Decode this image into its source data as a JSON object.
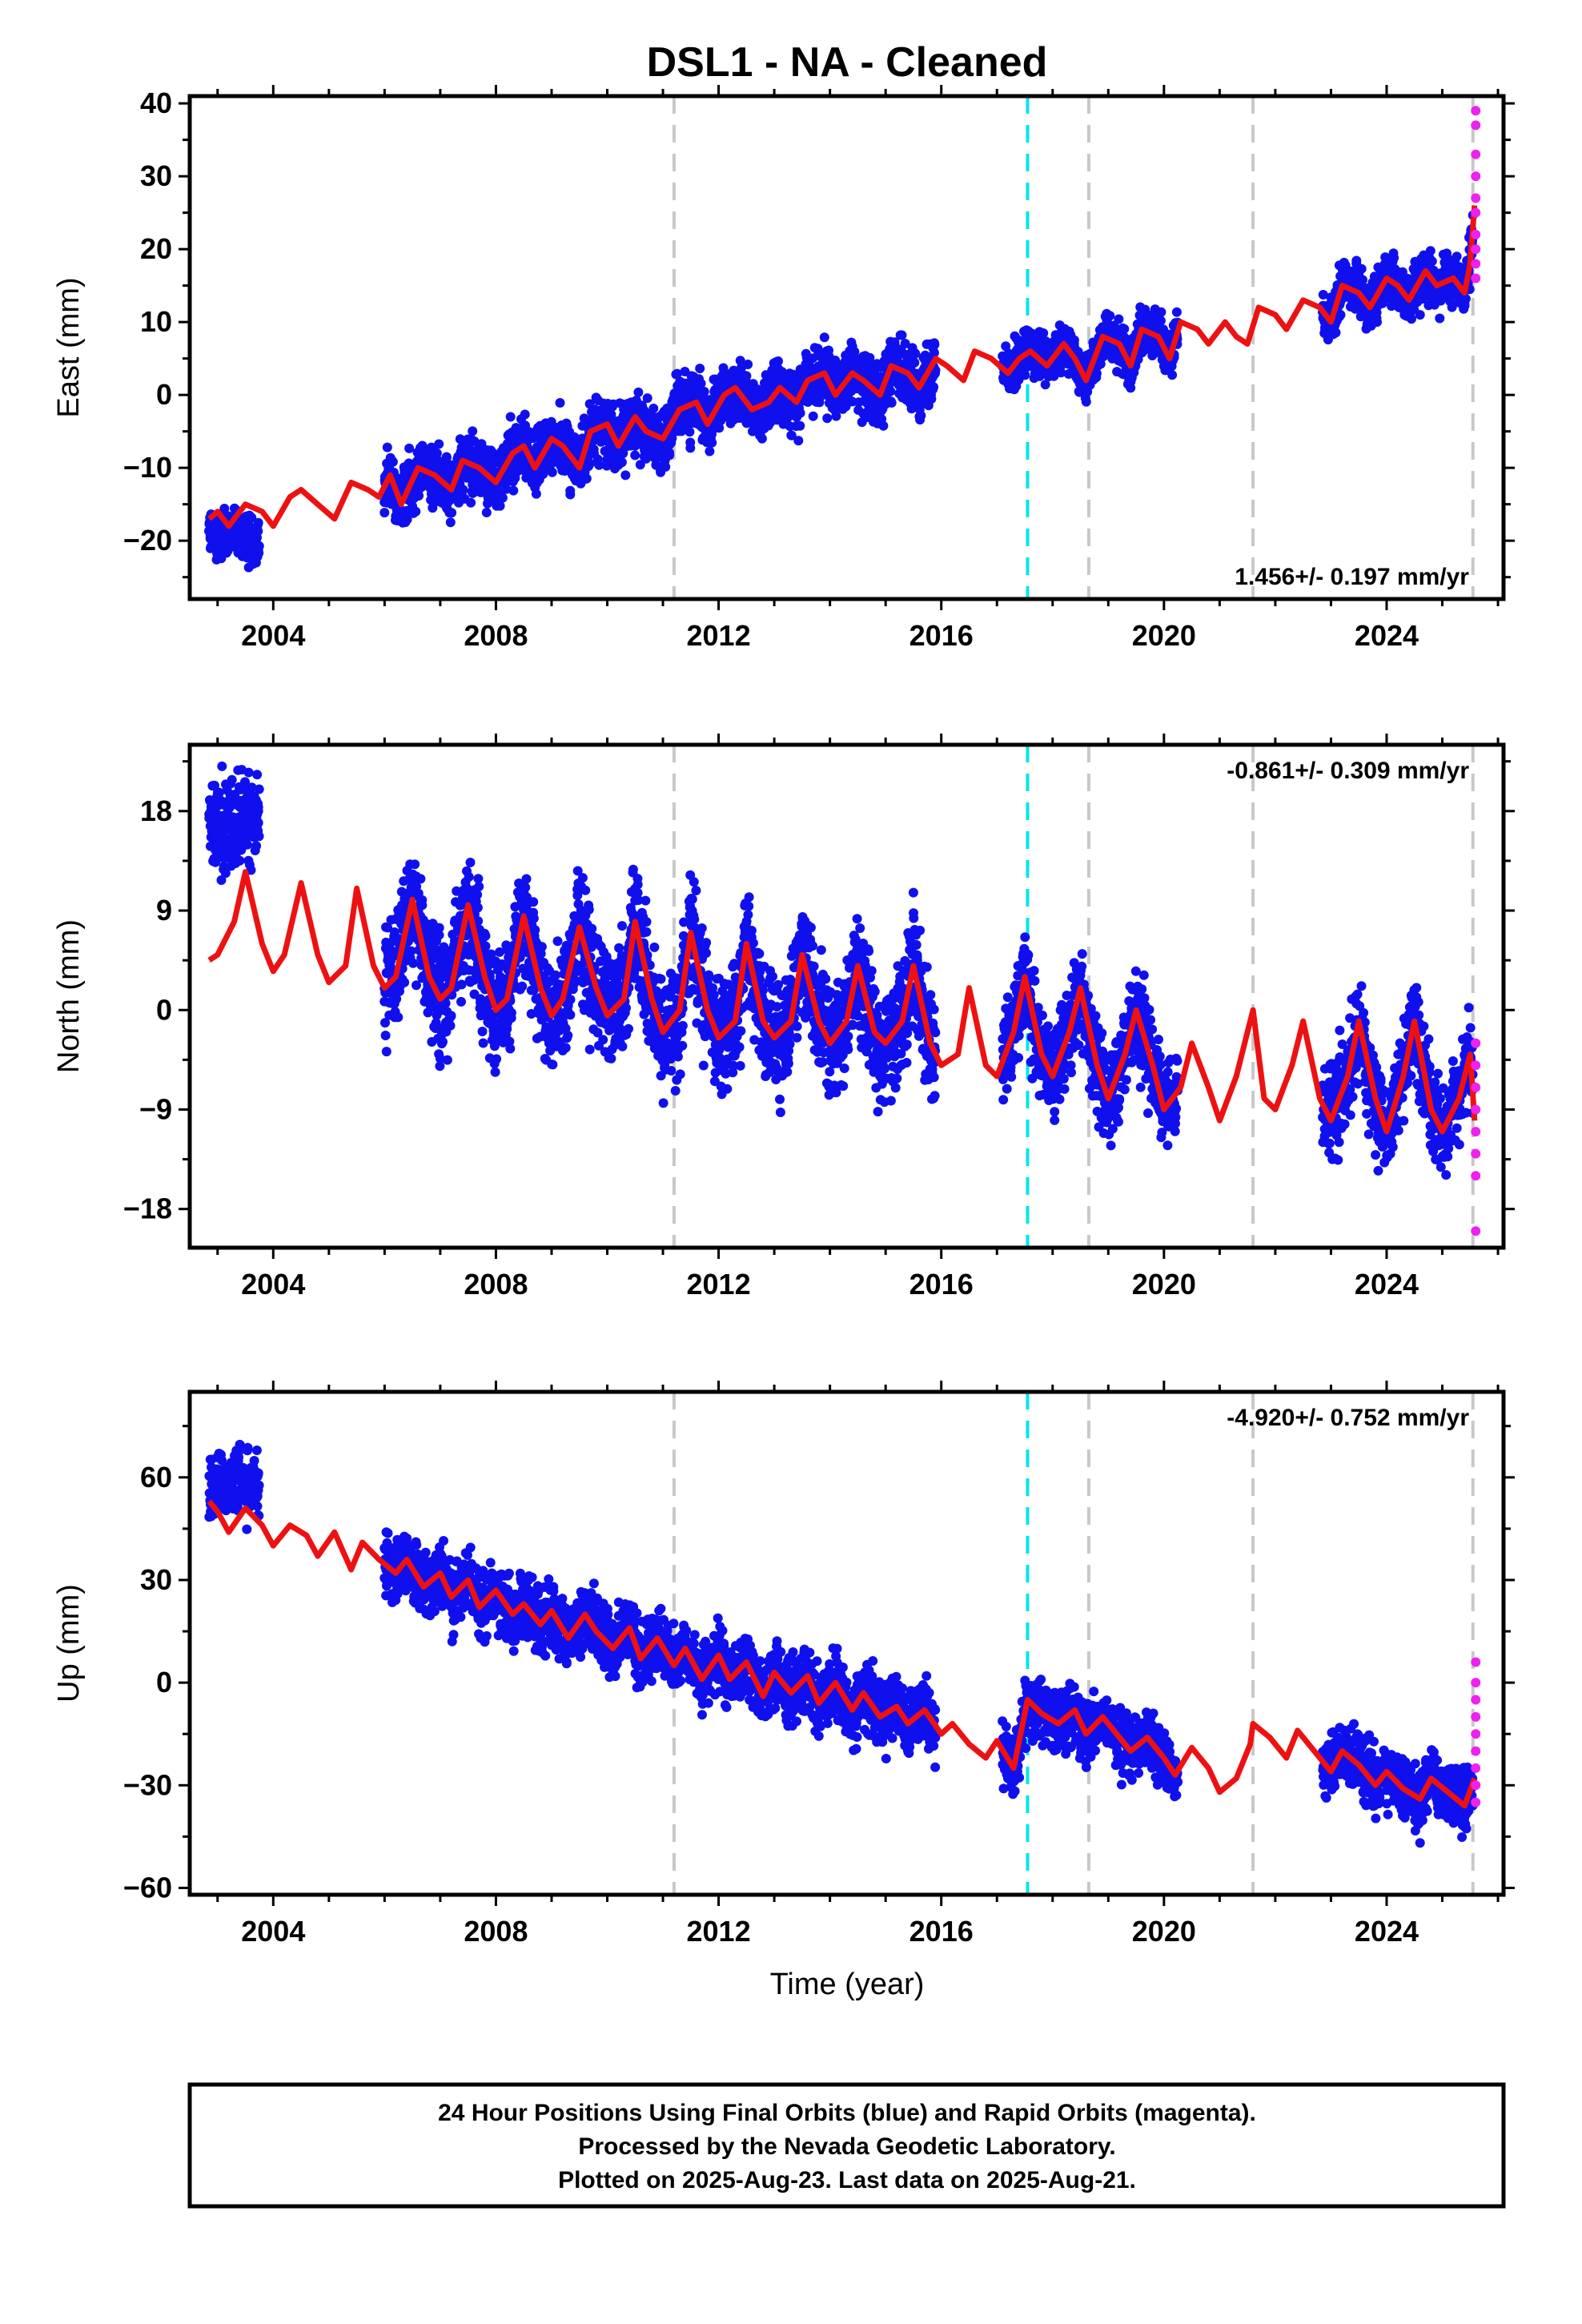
{
  "title": "DSL1  - NA - Cleaned",
  "xlabel": "Time (year)",
  "footer": {
    "lines": [
      "24 Hour Positions Using Final Orbits (blue) and Rapid Orbits (magenta).",
      "Processed by the Nevada Geodetic Laboratory.",
      "Plotted on 2025-Aug-23. Last data on 2025-Aug-21."
    ]
  },
  "colors": {
    "final": "#1010ee",
    "rapid": "#ee22ee",
    "model": "#ee1111",
    "equipment_change": "#c8c8c8",
    "earthquake": "#00e5ee"
  },
  "chart_data": [
    {
      "type": "scatter",
      "component": "East",
      "ylabel": "East (mm)",
      "xlim": [
        2002.5,
        2026.1
      ],
      "ylim": [
        -28,
        41
      ],
      "yticks": [
        40,
        30,
        20,
        10,
        0,
        -10,
        -20
      ],
      "yticks_minor_step": 5,
      "xticks": [
        2004,
        2008,
        2012,
        2016,
        2020,
        2024
      ],
      "xticks_minor_step": 1,
      "rate_label": "1.456+/- 0.197 mm/yr",
      "rate_position": "bottom-right",
      "gray_vlines": [
        2011.2,
        2018.65,
        2021.6,
        2025.55
      ],
      "cyan_vlines": [
        2017.55
      ],
      "model": {
        "x": [
          2002.85,
          2003.0,
          2003.2,
          2003.5,
          2003.8,
          2004.0,
          2004.3,
          2004.5,
          2004.8,
          2005.1,
          2005.4,
          2005.7,
          2005.9,
          2006.1,
          2006.3,
          2006.6,
          2006.9,
          2007.2,
          2007.4,
          2007.7,
          2008.0,
          2008.3,
          2008.5,
          2008.7,
          2009.0,
          2009.2,
          2009.5,
          2009.7,
          2010.0,
          2010.2,
          2010.5,
          2010.7,
          2011.0,
          2011.3,
          2011.6,
          2011.8,
          2012.1,
          2012.3,
          2012.6,
          2012.9,
          2013.1,
          2013.4,
          2013.6,
          2013.9,
          2014.1,
          2014.4,
          2014.6,
          2014.9,
          2015.1,
          2015.4,
          2015.6,
          2015.9,
          2016.1,
          2016.4,
          2016.6,
          2016.9,
          2017.2,
          2017.4,
          2017.6,
          2017.9,
          2018.2,
          2018.4,
          2018.6,
          2018.9,
          2019.2,
          2019.4,
          2019.6,
          2019.9,
          2020.1,
          2020.3,
          2020.6,
          2020.8,
          2021.1,
          2021.3,
          2021.5,
          2021.7,
          2022.0,
          2022.2,
          2022.5,
          2022.8,
          2023.0,
          2023.2,
          2023.5,
          2023.7,
          2024.0,
          2024.2,
          2024.4,
          2024.7,
          2024.9,
          2025.2,
          2025.4,
          2025.5,
          2025.58
        ],
        "y": [
          -17,
          -16,
          -18,
          -15,
          -16,
          -18,
          -14,
          -13,
          -15,
          -17,
          -12,
          -13,
          -14,
          -11,
          -15,
          -10,
          -11,
          -13,
          -9,
          -10,
          -12,
          -8,
          -7,
          -10,
          -6,
          -7,
          -10,
          -5,
          -4,
          -7,
          -3,
          -5,
          -6,
          -2,
          -1,
          -4,
          0,
          1,
          -2,
          -1,
          1,
          -1,
          2,
          3,
          0,
          3,
          2,
          0,
          4,
          3,
          1,
          5,
          4,
          2,
          6,
          5,
          3,
          5,
          6,
          4,
          7,
          5,
          2,
          8,
          7,
          4,
          9,
          8,
          5,
          10,
          9,
          7,
          10,
          8,
          7,
          12,
          11,
          9,
          13,
          12,
          10,
          15,
          14,
          12,
          16,
          15,
          13,
          17,
          15,
          16,
          14,
          18,
          26
        ]
      },
      "final_segments": [
        {
          "x0": 2002.85,
          "x1": 2003.75,
          "base": [
            -19,
            -20
          ],
          "spread": 3.5
        },
        {
          "x0": 2006.0,
          "x1": 2015.9,
          "base": [
            -16,
            2
          ],
          "spread": 4
        },
        {
          "x0": 2017.1,
          "x1": 2020.25,
          "base": [
            3,
            7
          ],
          "spread": 3
        },
        {
          "x0": 2022.85,
          "x1": 2025.55,
          "base": [
            13,
            14
          ],
          "spread": 3.2
        }
      ],
      "rapid_points": {
        "x": 2025.6,
        "values": [
          39,
          37,
          33,
          30,
          27,
          25,
          22,
          20,
          18,
          16
        ]
      }
    },
    {
      "type": "scatter",
      "component": "North",
      "ylabel": "North (mm)",
      "xlim": [
        2002.5,
        2026.1
      ],
      "ylim": [
        -21.5,
        24
      ],
      "yticks": [
        18,
        9,
        0,
        -9,
        -18
      ],
      "yticks_minor_step": 4.5,
      "xticks": [
        2004,
        2008,
        2012,
        2016,
        2020,
        2024
      ],
      "xticks_minor_step": 1,
      "rate_label": "-0.861+/- 0.309 mm/yr",
      "rate_position": "top-right",
      "gray_vlines": [
        2011.2,
        2018.65,
        2021.6,
        2025.55
      ],
      "cyan_vlines": [
        2017.55
      ],
      "model": {
        "x": [
          2002.85,
          2003.0,
          2003.3,
          2003.5,
          2003.8,
          2004.0,
          2004.2,
          2004.5,
          2004.8,
          2005.0,
          2005.3,
          2005.5,
          2005.8,
          2006.0,
          2006.2,
          2006.5,
          2006.8,
          2007.0,
          2007.2,
          2007.5,
          2007.8,
          2008.0,
          2008.2,
          2008.5,
          2008.8,
          2009.0,
          2009.2,
          2009.5,
          2009.8,
          2010.0,
          2010.3,
          2010.5,
          2010.8,
          2011.0,
          2011.3,
          2011.5,
          2011.8,
          2012.0,
          2012.3,
          2012.5,
          2012.8,
          2013.0,
          2013.3,
          2013.5,
          2013.8,
          2014.0,
          2014.3,
          2014.5,
          2014.8,
          2015.0,
          2015.3,
          2015.5,
          2015.8,
          2016.0,
          2016.3,
          2016.5,
          2016.8,
          2017.0,
          2017.3,
          2017.5,
          2017.8,
          2018.0,
          2018.3,
          2018.5,
          2018.8,
          2019.0,
          2019.3,
          2019.5,
          2019.8,
          2020.0,
          2020.3,
          2020.5,
          2020.8,
          2021.0,
          2021.3,
          2021.5,
          2021.6,
          2021.8,
          2022.0,
          2022.3,
          2022.5,
          2022.8,
          2023.0,
          2023.3,
          2023.5,
          2023.8,
          2024.0,
          2024.3,
          2024.5,
          2024.8,
          2025.0,
          2025.3,
          2025.5,
          2025.58
        ],
        "y": [
          4.5,
          5,
          8,
          12.5,
          6,
          3.5,
          5,
          11.5,
          5,
          2.5,
          4,
          11,
          4,
          2,
          3,
          10,
          3,
          1,
          2,
          9.5,
          3,
          0,
          1,
          8.5,
          2,
          -0.5,
          1,
          7.5,
          2,
          -0.5,
          1,
          8,
          1,
          -2,
          0,
          7,
          0,
          -2.5,
          -1,
          6,
          -1,
          -2.5,
          -1,
          5,
          -1,
          -3,
          -1,
          4,
          -2,
          -3,
          -1,
          4,
          -3,
          -5,
          -4,
          2,
          -5,
          -6,
          -2,
          3,
          -4,
          -6,
          -2,
          2,
          -5,
          -8,
          -4,
          0,
          -5,
          -9,
          -7,
          -3,
          -7,
          -10,
          -6,
          -2,
          0,
          -8,
          -9,
          -5,
          -1,
          -8,
          -10,
          -6,
          -1,
          -8,
          -11,
          -6,
          -1,
          -9,
          -11,
          -8,
          -4,
          -10
        ]
      },
      "final_segments": [
        {
          "x0": 2002.85,
          "x1": 2003.75,
          "base": [
            17,
            17
          ],
          "spread": 4
        },
        {
          "x0": 2006.0,
          "x1": 2015.9,
          "base": [
            3,
            -1
          ],
          "spread": 5
        },
        {
          "x0": 2017.1,
          "x1": 2020.25,
          "base": [
            -1,
            -5
          ],
          "spread": 4
        },
        {
          "x0": 2022.85,
          "x1": 2025.55,
          "base": [
            -6,
            -8
          ],
          "spread": 4
        }
      ],
      "rapid_points": {
        "x": 2025.6,
        "values": [
          -3,
          -5,
          -7,
          -9,
          -11,
          -13,
          -15,
          -20
        ]
      }
    },
    {
      "type": "scatter",
      "component": "Up",
      "ylabel": "Up (mm)",
      "xlim": [
        2002.5,
        2026.1
      ],
      "ylim": [
        -62,
        85
      ],
      "yticks": [
        60,
        30,
        0,
        -30,
        -60
      ],
      "yticks_minor_step": 15,
      "xticks": [
        2004,
        2008,
        2012,
        2016,
        2020,
        2024
      ],
      "xticks_minor_step": 1,
      "rate_label": "-4.920+/- 0.752 mm/yr",
      "rate_position": "top-right",
      "gray_vlines": [
        2011.2,
        2018.65,
        2021.6,
        2025.55
      ],
      "cyan_vlines": [
        2017.55
      ],
      "model": {
        "x": [
          2002.85,
          2003.0,
          2003.2,
          2003.5,
          2003.8,
          2004.0,
          2004.3,
          2004.6,
          2004.8,
          2005.1,
          2005.4,
          2005.6,
          2005.9,
          2006.2,
          2006.4,
          2006.7,
          2007.0,
          2007.2,
          2007.5,
          2007.7,
          2008.0,
          2008.3,
          2008.5,
          2008.8,
          2009.0,
          2009.3,
          2009.6,
          2009.8,
          2010.1,
          2010.4,
          2010.6,
          2010.9,
          2011.2,
          2011.4,
          2011.7,
          2012.0,
          2012.2,
          2012.5,
          2012.8,
          2013.0,
          2013.3,
          2013.6,
          2013.8,
          2014.1,
          2014.4,
          2014.6,
          2014.9,
          2015.2,
          2015.4,
          2015.7,
          2016.0,
          2016.2,
          2016.5,
          2016.8,
          2017.0,
          2017.3,
          2017.55,
          2017.8,
          2018.1,
          2018.4,
          2018.6,
          2018.9,
          2019.2,
          2019.4,
          2019.7,
          2020.0,
          2020.2,
          2020.5,
          2020.8,
          2021.0,
          2021.3,
          2021.55,
          2021.6,
          2021.9,
          2022.2,
          2022.4,
          2022.7,
          2023.0,
          2023.2,
          2023.5,
          2023.8,
          2024.0,
          2024.3,
          2024.6,
          2024.8,
          2025.1,
          2025.4,
          2025.58
        ],
        "y": [
          53,
          50,
          44,
          51,
          46,
          40,
          46,
          43,
          37,
          44,
          33,
          41,
          36,
          32,
          36,
          28,
          32,
          25,
          30,
          22,
          27,
          20,
          23,
          17,
          21,
          13,
          20,
          15,
          10,
          16,
          7,
          13,
          5,
          10,
          1,
          8,
          1,
          6,
          -4,
          3,
          -3,
          2,
          -6,
          0,
          -8,
          -3,
          -10,
          -7,
          -12,
          -8,
          -15,
          -12,
          -18,
          -22,
          -17,
          -25,
          -5,
          -9,
          -12,
          -8,
          -15,
          -10,
          -16,
          -20,
          -16,
          -22,
          -27,
          -19,
          -25,
          -32,
          -28,
          -18,
          -12,
          -16,
          -22,
          -14,
          -20,
          -26,
          -20,
          -24,
          -30,
          -26,
          -31,
          -34,
          -28,
          -32,
          -36,
          -28
        ]
      },
      "final_segments": [
        {
          "x0": 2002.85,
          "x1": 2003.75,
          "base": [
            58,
            58
          ],
          "spread": 9
        },
        {
          "x0": 2006.0,
          "x1": 2015.9,
          "base": [
            38,
            -8
          ],
          "spread": 9
        },
        {
          "x0": 2017.1,
          "x1": 2020.25,
          "base": [
            -8,
            -22
          ],
          "spread": 9
        },
        {
          "x0": 2022.85,
          "x1": 2025.55,
          "base": [
            -25,
            -32
          ],
          "spread": 9
        }
      ],
      "rapid_points": {
        "x": 2025.6,
        "values": [
          6,
          0,
          -5,
          -10,
          -15,
          -20,
          -25,
          -30,
          -35
        ]
      }
    }
  ]
}
